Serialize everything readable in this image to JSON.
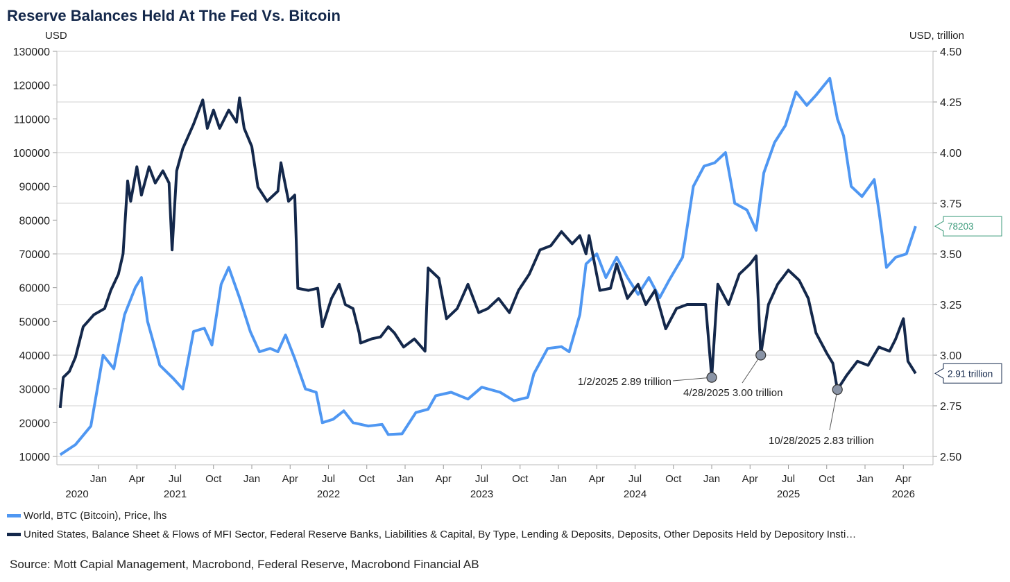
{
  "chart_data": {
    "type": "line",
    "title": "Reserve Balances Held At The Fed Vs. Bitcoin",
    "left_axis": {
      "label": "USD",
      "range": [
        10000,
        130000
      ],
      "ticks": [
        "130000",
        "120000",
        "110000",
        "100000",
        "90000",
        "80000",
        "70000",
        "60000",
        "50000",
        "40000",
        "30000",
        "20000",
        "10000"
      ]
    },
    "right_axis": {
      "label": "USD, trillion",
      "range": [
        2.5,
        4.5
      ],
      "ticks": [
        "4.50",
        "4.25",
        "4.00",
        "3.75",
        "3.50",
        "3.25",
        "3.00",
        "2.75",
        "2.50"
      ]
    },
    "x_axis": {
      "range": [
        2020.72,
        2026.45
      ],
      "quarter_ticks": [
        {
          "x": 2021.0,
          "label": "Jan"
        },
        {
          "x": 2021.25,
          "label": "Apr"
        },
        {
          "x": 2021.5,
          "label": "Jul"
        },
        {
          "x": 2021.75,
          "label": "Oct"
        },
        {
          "x": 2022.0,
          "label": "Jan"
        },
        {
          "x": 2022.25,
          "label": "Apr"
        },
        {
          "x": 2022.5,
          "label": "Jul"
        },
        {
          "x": 2022.75,
          "label": "Oct"
        },
        {
          "x": 2023.0,
          "label": "Jan"
        },
        {
          "x": 2023.25,
          "label": "Apr"
        },
        {
          "x": 2023.5,
          "label": "Jul"
        },
        {
          "x": 2023.75,
          "label": "Oct"
        },
        {
          "x": 2024.0,
          "label": "Jan"
        },
        {
          "x": 2024.25,
          "label": "Apr"
        },
        {
          "x": 2024.5,
          "label": "Jul"
        },
        {
          "x": 2024.75,
          "label": "Oct"
        },
        {
          "x": 2025.0,
          "label": "Jan"
        },
        {
          "x": 2025.25,
          "label": "Apr"
        },
        {
          "x": 2025.5,
          "label": "Jul"
        },
        {
          "x": 2025.75,
          "label": "Oct"
        },
        {
          "x": 2026.0,
          "label": "Jan"
        },
        {
          "x": 2026.25,
          "label": "Apr"
        }
      ],
      "year_labels": [
        {
          "x": 2020.86,
          "label": "2020"
        },
        {
          "x": 2021.5,
          "label": "2021"
        },
        {
          "x": 2022.5,
          "label": "2022"
        },
        {
          "x": 2023.5,
          "label": "2023"
        },
        {
          "x": 2024.5,
          "label": "2024"
        },
        {
          "x": 2025.5,
          "label": "2025"
        },
        {
          "x": 2026.25,
          "label": "2026"
        }
      ]
    },
    "grid": true,
    "series": [
      {
        "name": "World, BTC (Bitcoin), Price, lhs",
        "axis": "left",
        "color": "#4f97f2",
        "last_value_label": "78203",
        "label_color": "#3a9a7a",
        "x": [
          2020.75,
          2020.85,
          2020.95,
          2021.03,
          2021.1,
          2021.17,
          2021.24,
          2021.28,
          2021.32,
          2021.4,
          2021.49,
          2021.55,
          2021.62,
          2021.69,
          2021.74,
          2021.8,
          2021.85,
          2021.92,
          2021.99,
          2022.05,
          2022.12,
          2022.17,
          2022.22,
          2022.28,
          2022.35,
          2022.42,
          2022.46,
          2022.53,
          2022.6,
          2022.66,
          2022.76,
          2022.85,
          2022.89,
          2022.98,
          2023.07,
          2023.15,
          2023.2,
          2023.3,
          2023.41,
          2023.5,
          2023.62,
          2023.71,
          2023.8,
          2023.84,
          2023.93,
          2024.02,
          2024.07,
          2024.14,
          2024.18,
          2024.25,
          2024.31,
          2024.38,
          2024.45,
          2024.52,
          2024.59,
          2024.66,
          2024.72,
          2024.81,
          2024.88,
          2024.95,
          2025.02,
          2025.09,
          2025.15,
          2025.23,
          2025.29,
          2025.34,
          2025.41,
          2025.48,
          2025.55,
          2025.62,
          2025.68,
          2025.77,
          2025.82,
          2025.86,
          2025.91,
          2025.98,
          2026.06,
          2026.09,
          2026.14,
          2026.2,
          2026.27,
          2026.33
        ],
        "values": [
          10500,
          13500,
          19000,
          40000,
          36000,
          52000,
          60000,
          63000,
          50000,
          37000,
          33000,
          30000,
          47000,
          48000,
          43000,
          61000,
          66000,
          57000,
          47000,
          41000,
          42000,
          41000,
          46000,
          39000,
          30000,
          29000,
          20000,
          21000,
          23500,
          20000,
          19000,
          19500,
          16500,
          16700,
          23000,
          24000,
          28000,
          29000,
          27000,
          30500,
          29000,
          26500,
          27500,
          34500,
          42000,
          42500,
          41000,
          52000,
          67000,
          70000,
          63000,
          69000,
          63000,
          58000,
          63000,
          57000,
          62000,
          69000,
          90000,
          96000,
          97000,
          100000,
          85000,
          83000,
          77000,
          94000,
          103000,
          108000,
          118000,
          114000,
          117000,
          122000,
          110000,
          105000,
          90000,
          87000,
          92000,
          83000,
          66000,
          69000,
          70000,
          78203
        ]
      },
      {
        "name": "United States, Balance Sheet & Flows of MFI Sector, Federal Reserve Banks, Liabilities & Capital, By Type, Lending & Deposits, Deposits, Other Deposits Held by Depository Insti…",
        "axis": "right",
        "color": "#14284b",
        "last_value_label": "2.91 trillion",
        "label_color": "#14284b",
        "x": [
          2020.75,
          2020.77,
          2020.81,
          2020.85,
          2020.9,
          2020.97,
          2021.04,
          2021.08,
          2021.13,
          2021.16,
          2021.19,
          2021.21,
          2021.25,
          2021.28,
          2021.33,
          2021.37,
          2021.42,
          2021.46,
          2021.48,
          2021.51,
          2021.55,
          2021.62,
          2021.68,
          2021.71,
          2021.75,
          2021.79,
          2021.85,
          2021.9,
          2021.92,
          2021.95,
          2022.0,
          2022.04,
          2022.1,
          2022.17,
          2022.19,
          2022.24,
          2022.28,
          2022.3,
          2022.37,
          2022.43,
          2022.46,
          2022.52,
          2022.57,
          2022.61,
          2022.66,
          2022.7,
          2022.71,
          2022.78,
          2022.84,
          2022.89,
          2022.93,
          2022.99,
          2023.06,
          2023.13,
          2023.15,
          2023.22,
          2023.27,
          2023.34,
          2023.41,
          2023.48,
          2023.54,
          2023.61,
          2023.68,
          2023.74,
          2023.81,
          2023.88,
          2023.95,
          2024.02,
          2024.09,
          2024.14,
          2024.18,
          2024.2,
          2024.27,
          2024.34,
          2024.38,
          2024.45,
          2024.52,
          2024.57,
          2024.63,
          2024.7,
          2024.77,
          2024.84,
          2024.96,
          2025.0,
          2025.04,
          2025.11,
          2025.18,
          2025.25,
          2025.29,
          2025.32,
          2025.37,
          2025.43,
          2025.5,
          2025.57,
          2025.63,
          2025.68,
          2025.75,
          2025.79,
          2025.82,
          2025.88,
          2025.95,
          2026.02,
          2026.09,
          2026.16,
          2026.2,
          2026.25,
          2026.28,
          2026.33
        ],
        "values": [
          2.74,
          2.89,
          2.92,
          2.99,
          3.14,
          3.2,
          3.23,
          3.32,
          3.4,
          3.5,
          3.86,
          3.76,
          3.93,
          3.79,
          3.93,
          3.85,
          3.91,
          3.85,
          3.52,
          3.91,
          4.02,
          4.14,
          4.26,
          4.12,
          4.21,
          4.12,
          4.21,
          4.15,
          4.27,
          4.12,
          4.03,
          3.83,
          3.76,
          3.81,
          3.95,
          3.76,
          3.79,
          3.33,
          3.32,
          3.33,
          3.14,
          3.28,
          3.35,
          3.25,
          3.23,
          3.11,
          3.06,
          3.08,
          3.09,
          3.14,
          3.11,
          3.04,
          3.08,
          3.02,
          3.43,
          3.38,
          3.18,
          3.23,
          3.35,
          3.21,
          3.23,
          3.28,
          3.21,
          3.32,
          3.4,
          3.52,
          3.54,
          3.61,
          3.55,
          3.59,
          3.5,
          3.59,
          3.32,
          3.33,
          3.45,
          3.28,
          3.35,
          3.25,
          3.32,
          3.13,
          3.23,
          3.25,
          3.25,
          2.89,
          3.35,
          3.25,
          3.4,
          3.45,
          3.49,
          3.0,
          3.25,
          3.35,
          3.42,
          3.37,
          3.28,
          3.11,
          3.01,
          2.96,
          2.83,
          2.9,
          2.97,
          2.95,
          3.04,
          3.02,
          3.08,
          3.18,
          2.97,
          2.91
        ]
      }
    ],
    "annotations": [
      {
        "x": 2025.0,
        "value": 2.89,
        "label": "1/2/2025 2.89 trillion"
      },
      {
        "x": 2025.32,
        "value": 3.0,
        "label": "4/28/2025 3.00 trillion"
      },
      {
        "x": 2025.82,
        "value": 2.83,
        "label": "10/28/2025 2.83 trillion"
      }
    ],
    "legend_position": "bottom-left",
    "source": "Source: Mott Capial Management, Macrobond, Federal Reserve, Macrobond Financial AB"
  }
}
